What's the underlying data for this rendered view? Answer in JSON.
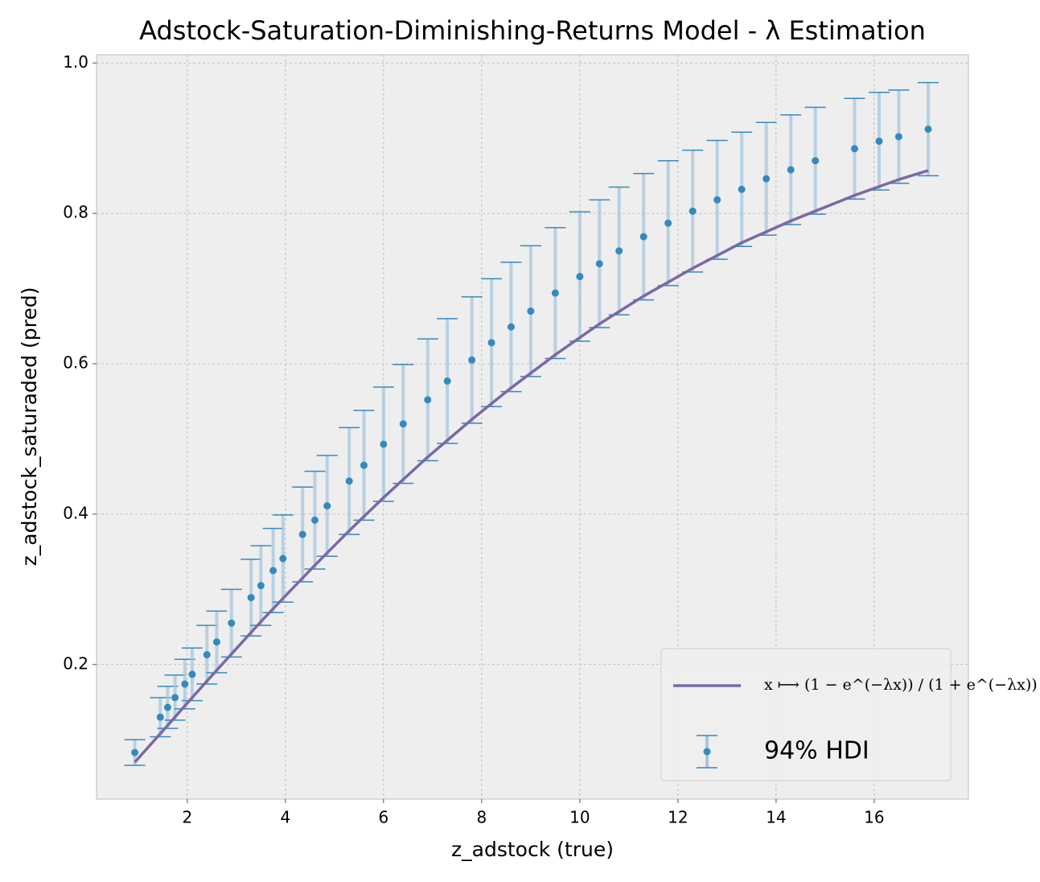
{
  "chart_data": {
    "type": "errorbar",
    "title": "Adstock-Saturation-Diminishing-Returns Model - λ Estimation",
    "x_label": "z_adstock (true)",
    "y_label": "z_adstock_saturaded (pred)",
    "xlim": [
      0.15,
      17.92
    ],
    "ylim": [
      0.021,
      1.011
    ],
    "xticks": [
      2,
      4,
      6,
      8,
      10,
      12,
      14,
      16
    ],
    "yticks": [
      0.2,
      0.4,
      0.6,
      0.8,
      {
        "value": 1,
        "label": "1.0"
      }
    ],
    "grid": true,
    "legend": "lower right",
    "series": [
      {
        "name": "94% HDI",
        "type": "errorbar",
        "color": "#348abd",
        "bar_color": "#a6c6dd",
        "x": [
          0.93,
          1.45,
          1.6,
          1.75,
          1.95,
          2.1,
          2.4,
          2.6,
          2.9,
          3.3,
          3.5,
          3.75,
          3.95,
          4.35,
          4.6,
          4.85,
          5.3,
          5.6,
          6.0,
          6.4,
          6.9,
          7.3,
          7.8,
          8.2,
          8.6,
          9.0,
          9.5,
          10.0,
          10.4,
          10.8,
          11.3,
          11.8,
          12.3,
          12.8,
          13.3,
          13.8,
          14.3,
          14.8,
          15.6,
          16.1,
          16.5,
          17.1
        ],
        "values": [
          0.083,
          0.13,
          0.143,
          0.156,
          0.174,
          0.187,
          0.213,
          0.23,
          0.255,
          0.289,
          0.305,
          0.325,
          0.341,
          0.373,
          0.392,
          0.411,
          0.444,
          0.465,
          0.493,
          0.52,
          0.552,
          0.577,
          0.605,
          0.628,
          0.649,
          0.67,
          0.694,
          0.716,
          0.733,
          0.75,
          0.769,
          0.787,
          0.803,
          0.818,
          0.832,
          0.846,
          0.858,
          0.87,
          0.886,
          0.896,
          0.902,
          0.912
        ],
        "lower": [
          0.066,
          0.104,
          0.115,
          0.126,
          0.141,
          0.152,
          0.174,
          0.189,
          0.21,
          0.238,
          0.252,
          0.269,
          0.283,
          0.31,
          0.327,
          0.344,
          0.373,
          0.392,
          0.417,
          0.441,
          0.471,
          0.494,
          0.521,
          0.543,
          0.563,
          0.583,
          0.607,
          0.63,
          0.648,
          0.665,
          0.685,
          0.704,
          0.722,
          0.739,
          0.756,
          0.771,
          0.785,
          0.799,
          0.819,
          0.831,
          0.84,
          0.85
        ],
        "upper": [
          0.1,
          0.156,
          0.171,
          0.186,
          0.207,
          0.222,
          0.252,
          0.271,
          0.3,
          0.34,
          0.358,
          0.381,
          0.399,
          0.436,
          0.457,
          0.478,
          0.515,
          0.538,
          0.569,
          0.599,
          0.633,
          0.66,
          0.689,
          0.713,
          0.735,
          0.757,
          0.781,
          0.802,
          0.818,
          0.835,
          0.853,
          0.87,
          0.884,
          0.897,
          0.908,
          0.921,
          0.931,
          0.941,
          0.953,
          0.961,
          0.964,
          0.974
        ]
      },
      {
        "name": "x ⟼ (1 − e^(−λx)) / (1 + e^(−λx))",
        "type": "line",
        "color": "#7a68a6",
        "x": [
          0.93,
          1.45,
          1.95,
          2.4,
          2.9,
          3.5,
          3.95,
          4.6,
          5.3,
          6.0,
          6.9,
          7.8,
          8.6,
          9.5,
          10.4,
          11.3,
          12.3,
          13.3,
          14.3,
          15.6,
          16.5,
          17.1
        ],
        "values": [
          0.07,
          0.108,
          0.145,
          0.178,
          0.214,
          0.257,
          0.288,
          0.332,
          0.378,
          0.422,
          0.476,
          0.526,
          0.568,
          0.612,
          0.653,
          0.69,
          0.727,
          0.761,
          0.79,
          0.824,
          0.845,
          0.857
        ]
      }
    ]
  }
}
